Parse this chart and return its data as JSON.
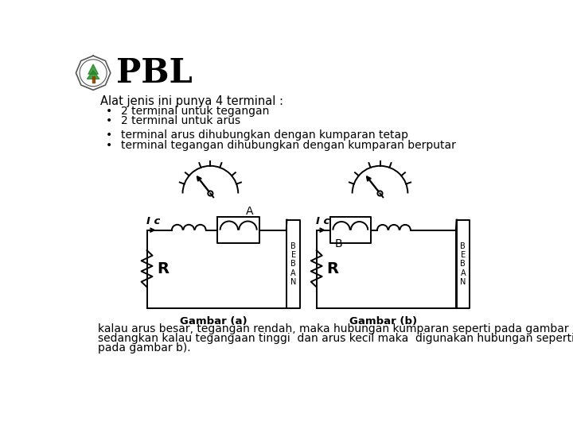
{
  "title": "PBL",
  "bg_color": "#ffffff",
  "text_color": "#000000",
  "header_text": "Alat jenis ini punya 4 terminal :",
  "bullet1": "2 terminal untuk tegangan",
  "bullet2": "2 terminal untuk arus",
  "bullet3": "terminal arus dihubungkan dengan kumparan tetap",
  "bullet4": "terminal tegangan dihubungkan dengan kumparan berputar",
  "caption_a": "Gambar (a)",
  "caption_b": "Gambar (b)",
  "footer_line1": "kalau arus besar, tegangan rendah, maka hubungan kumparan seperti pada gambar a).",
  "footer_line2": "sedangkan kalau tegangaan tinggi  dan arus kecil maka  digunakan hubungan seperti",
  "footer_line3": "pada gambar b).",
  "label_A": "A",
  "label_B": "B",
  "label_Ic": "I c",
  "label_R": "R",
  "beban_text": "B\nE\nB\nA\nN"
}
